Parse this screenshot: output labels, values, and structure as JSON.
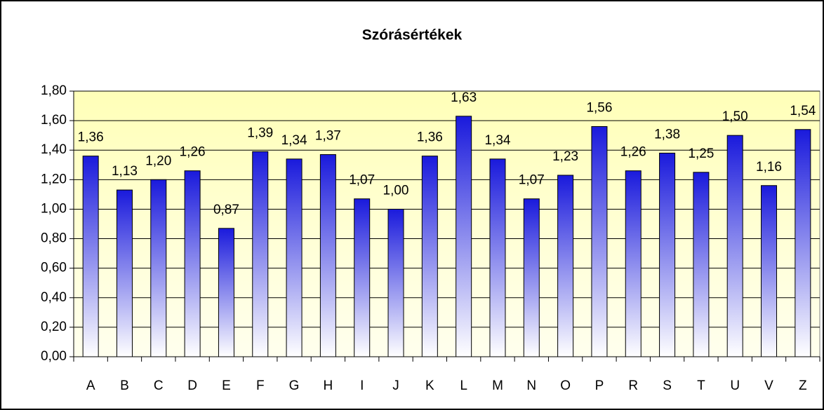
{
  "chart_data": {
    "type": "bar",
    "title": "Szórásértékek",
    "categories": [
      "A",
      "B",
      "C",
      "D",
      "E",
      "F",
      "G",
      "H",
      "I",
      "J",
      "K",
      "L",
      "M",
      "N",
      "O",
      "P",
      "R",
      "S",
      "T",
      "U",
      "V",
      "Z"
    ],
    "values": [
      1.36,
      1.13,
      1.2,
      1.26,
      0.87,
      1.39,
      1.34,
      1.37,
      1.07,
      1.0,
      1.36,
      1.63,
      1.34,
      1.07,
      1.23,
      1.56,
      1.26,
      1.38,
      1.25,
      1.5,
      1.16,
      1.54
    ],
    "value_labels": [
      "1,36",
      "1,13",
      "1,20",
      "1,26",
      "0,87",
      "1,39",
      "1,34",
      "1,37",
      "1,07",
      "1,00",
      "1,36",
      "1,63",
      "1,34",
      "1,07",
      "1,23",
      "1,56",
      "1,26",
      "1,38",
      "1,25",
      "1,50",
      "1,16",
      "1,54"
    ],
    "color": "#1a1adc",
    "ylim": [
      0,
      1.8
    ],
    "yticks": [
      {
        "value": 0,
        "label": "0,00"
      },
      {
        "value": 0.2,
        "label": "0,20"
      },
      {
        "value": 0.4,
        "label": "0,40"
      },
      {
        "value": 0.6,
        "label": "0,60"
      },
      {
        "value": 0.8,
        "label": "0,80"
      },
      {
        "value": 1.0,
        "label": "1,00"
      },
      {
        "value": 1.2,
        "label": "1,20"
      },
      {
        "value": 1.4,
        "label": "1,40"
      },
      {
        "value": 1.6,
        "label": "1,60"
      },
      {
        "value": 1.8,
        "label": "1,80"
      }
    ],
    "grid": true
  }
}
